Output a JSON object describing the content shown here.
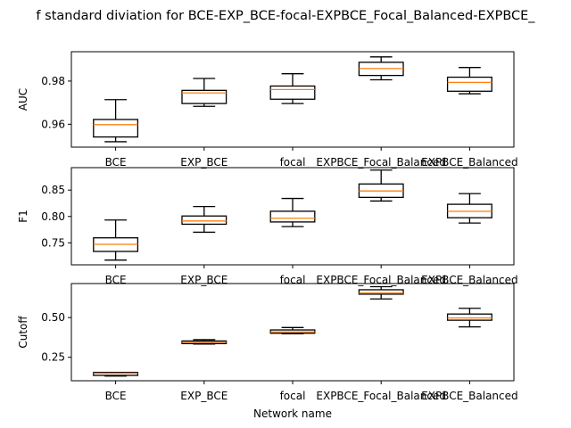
{
  "title": "f standard diviation for BCE-EXP_BCE-focal-EXPBCE_Focal_Balanced-EXPBCE_",
  "xlabel": "Network name",
  "colors": {
    "median": "#ff7f0e",
    "box": "#000000",
    "background": "#ffffff"
  },
  "chart_data": [
    {
      "type": "box",
      "ylabel": "AUC",
      "categories": [
        "BCE",
        "EXP_BCE",
        "focal",
        "EXPBCE_Focal_Balanced",
        "EXPBCE_Balanced"
      ],
      "yticks": [
        0.96,
        0.98
      ],
      "ytick_labels": [
        "0.96",
        "0.98"
      ],
      "ylim": [
        0.9494,
        0.9936
      ],
      "boxes": [
        {
          "whislo": 0.9519,
          "q1": 0.9541,
          "med": 0.9598,
          "q3": 0.9622,
          "whishi": 0.9714
        },
        {
          "whislo": 0.9683,
          "q1": 0.9696,
          "med": 0.9745,
          "q3": 0.9757,
          "whishi": 0.9812
        },
        {
          "whislo": 0.9696,
          "q1": 0.9716,
          "med": 0.9761,
          "q3": 0.9777,
          "whishi": 0.9834
        },
        {
          "whislo": 0.9806,
          "q1": 0.9826,
          "med": 0.9858,
          "q3": 0.9887,
          "whishi": 0.9912
        },
        {
          "whislo": 0.9741,
          "q1": 0.9753,
          "med": 0.9794,
          "q3": 0.9818,
          "whishi": 0.9863
        }
      ]
    },
    {
      "type": "box",
      "ylabel": "F1",
      "categories": [
        "BCE",
        "EXP_BCE",
        "focal",
        "EXPBCE_Focal_Balanced",
        "EXPBCE_Balanced"
      ],
      "yticks": [
        0.75,
        0.8,
        0.85
      ],
      "ytick_labels": [
        "0.75",
        "0.80",
        "0.85"
      ],
      "ylim": [
        0.7083,
        0.8926
      ],
      "boxes": [
        {
          "whislo": 0.7173,
          "q1": 0.7337,
          "med": 0.7472,
          "q3": 0.7595,
          "whishi": 0.7933
        },
        {
          "whislo": 0.7701,
          "q1": 0.7853,
          "med": 0.7915,
          "q3": 0.8009,
          "whishi": 0.8189
        },
        {
          "whislo": 0.7808,
          "q1": 0.7896,
          "med": 0.7966,
          "q3": 0.8099,
          "whishi": 0.8342
        },
        {
          "whislo": 0.8293,
          "q1": 0.8362,
          "med": 0.8483,
          "q3": 0.8616,
          "whishi": 0.888
        },
        {
          "whislo": 0.7876,
          "q1": 0.7976,
          "med": 0.8098,
          "q3": 0.8231,
          "whishi": 0.8433
        }
      ]
    },
    {
      "type": "box",
      "ylabel": "Cutoff",
      "categories": [
        "BCE",
        "EXP_BCE",
        "focal",
        "EXPBCE_Focal_Balanced",
        "EXPBCE_Balanced"
      ],
      "yticks": [
        0.25,
        0.5
      ],
      "ytick_labels": [
        "0.25",
        "0.50"
      ],
      "ylim": [
        0.1026,
        0.714
      ],
      "boxes": [
        {
          "whislo": 0.1321,
          "q1": 0.1361,
          "med": 0.15,
          "q3": 0.1553,
          "whishi": 0.1553
        },
        {
          "whislo": 0.3333,
          "q1": 0.3361,
          "med": 0.3444,
          "q3": 0.3528,
          "whishi": 0.3611
        },
        {
          "whislo": 0.3986,
          "q1": 0.4014,
          "med": 0.4097,
          "q3": 0.4222,
          "whishi": 0.4375
        },
        {
          "whislo": 0.6174,
          "q1": 0.6472,
          "med": 0.6542,
          "q3": 0.675,
          "whishi": 0.6944
        },
        {
          "whislo": 0.4417,
          "q1": 0.4833,
          "med": 0.4972,
          "q3": 0.5222,
          "whishi": 0.5583
        }
      ]
    }
  ]
}
